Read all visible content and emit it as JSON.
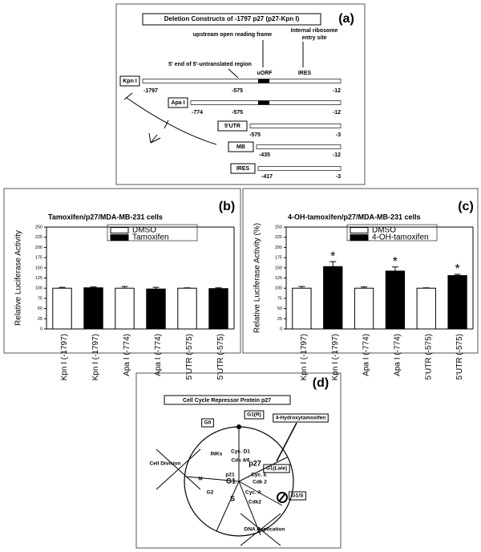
{
  "panel_a": {
    "panel_label": "(a)",
    "title": "Deletion Constructs of -1797 p27 (p27-Kpn I)",
    "uorf_note": "upstream open reading frame",
    "ires_note": [
      "Internal ribosome",
      "entry site"
    ],
    "utr_note": "5' end of 5'-untranslated region",
    "uorf_label": "uORF",
    "ires_label": "IRES",
    "constructs": [
      {
        "name": "Kpn I",
        "labels": [
          "-1797",
          "-575",
          "-12"
        ]
      },
      {
        "name": "Apa I",
        "labels": [
          "-774",
          "-575",
          "-12"
        ]
      },
      {
        "name": "5'UTR",
        "labels": [
          "-575",
          "-3"
        ]
      },
      {
        "name": "MB",
        "labels": [
          "-435",
          "-12"
        ]
      },
      {
        "name": "IRES",
        "labels": [
          "-417",
          "-3"
        ]
      }
    ]
  },
  "chart_data": [
    {
      "type": "bar",
      "panel_label": "(b)",
      "title": "Tamoxifen/p27/MDA-MB-231 cells",
      "y_label": "Relative Luciferase Activity",
      "categories": [
        "Kpn I (-1797)",
        "Kpn I (-1797)",
        "Apa I (-774)",
        "Apa I (-774)",
        "5'UTR (-575)",
        "5'UTR (-575)"
      ],
      "series": [
        {
          "name": "DMSO",
          "color": "#ffffff",
          "values": [
            100,
            null,
            100,
            null,
            100,
            null
          ],
          "errors": [
            2,
            null,
            4,
            null,
            1,
            null
          ]
        },
        {
          "name": "Tamoxifen",
          "color": "#000000",
          "values": [
            null,
            101,
            null,
            98,
            null,
            99
          ],
          "errors": [
            null,
            2,
            null,
            4,
            null,
            2
          ]
        }
      ],
      "ylim": [
        0,
        250
      ],
      "yticks": [
        0,
        25,
        50,
        75,
        100,
        125,
        150,
        175,
        200,
        225,
        250
      ],
      "grid": false,
      "legend": "top"
    },
    {
      "type": "bar",
      "panel_label": "(c)",
      "title": "4-OH-tamoxifen/p27/MDA-MB-231 cells",
      "y_label": "Relative Luciferase Activity (%)",
      "categories": [
        "Kpn I (-1797)",
        "Kpn I (-1797)",
        "Apa I (-774)",
        "Apa I (-774)",
        "5'UTR (-575)",
        "5'UTR (-575)"
      ],
      "series": [
        {
          "name": "DMSO",
          "color": "#ffffff",
          "values": [
            100,
            null,
            100,
            null,
            100,
            null
          ],
          "errors": [
            4,
            null,
            3,
            null,
            1,
            null
          ]
        },
        {
          "name": "4-OH-tamoxifen",
          "color": "#000000",
          "values": [
            null,
            153,
            null,
            142,
            null,
            131
          ],
          "errors": [
            null,
            12,
            null,
            10,
            null,
            3
          ]
        }
      ],
      "annotations": [
        null,
        "*",
        null,
        "*",
        null,
        "*"
      ],
      "ylim": [
        0,
        250
      ],
      "yticks": [
        0,
        25,
        50,
        75,
        100,
        125,
        150,
        175,
        200,
        225,
        250
      ],
      "grid": false,
      "legend": "top"
    }
  ],
  "panel_d": {
    "panel_label": "(d)",
    "title": "Cell Cycle Repressor Protein p27",
    "labels": [
      "G0",
      "G1(R)",
      "4-Hydroxytamoxifen",
      "Cell Division",
      "INKs",
      "Cyc. D1",
      "Cdk 4/6",
      "p27",
      "G1(Late)",
      "p21",
      "G1",
      "M",
      "G2",
      "S",
      "Cyc. E",
      "Cdk 2",
      "Cyc. A",
      "Cdk2",
      "G1/S",
      "DNA Replication"
    ]
  }
}
